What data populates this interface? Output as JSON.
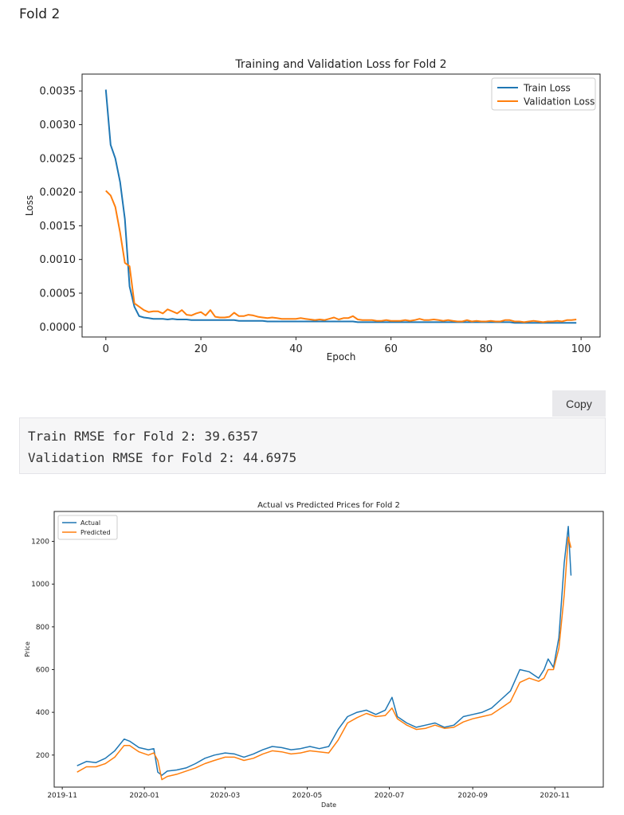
{
  "heading": "Fold 2",
  "copy_label": "Copy",
  "output_lines": [
    "Train RMSE for Fold 2: 39.6357",
    "Validation RMSE for Fold 2: 44.6975"
  ],
  "colors": {
    "blue": "#1f77b4",
    "orange": "#ff7f0e"
  },
  "chart_data": [
    {
      "type": "line",
      "title": "Training and Validation Loss for Fold 2",
      "xlabel": "Epoch",
      "ylabel": "Loss",
      "xlim": [
        -5,
        104
      ],
      "ylim": [
        -0.00015,
        0.00375
      ],
      "x_ticks": [
        0,
        20,
        40,
        60,
        80,
        100
      ],
      "y_ticks": [
        0.0,
        0.0005,
        0.001,
        0.0015,
        0.002,
        0.0025,
        0.003,
        0.0035
      ],
      "y_tick_labels": [
        "0.0000",
        "0.0005",
        "0.0010",
        "0.0015",
        "0.0020",
        "0.0025",
        "0.0030",
        "0.0035"
      ],
      "grid": false,
      "legend": "top-right",
      "series": [
        {
          "name": "Train Loss",
          "color": "#1f77b4",
          "values": [
            0.00352,
            0.0027,
            0.0025,
            0.00215,
            0.0016,
            0.0006,
            0.0003,
            0.00016,
            0.00014,
            0.00013,
            0.00012,
            0.00012,
            0.00012,
            0.00011,
            0.00012,
            0.00011,
            0.00011,
            0.00011,
            0.0001,
            0.0001,
            0.0001,
            0.0001,
            0.0001,
            0.0001,
            0.0001,
            0.0001,
            0.0001,
            0.0001,
            9e-05,
            9e-05,
            9e-05,
            9e-05,
            9e-05,
            9e-05,
            8e-05,
            8e-05,
            8e-05,
            8e-05,
            8e-05,
            8e-05,
            8e-05,
            8e-05,
            8e-05,
            8e-05,
            8e-05,
            8e-05,
            8e-05,
            8e-05,
            8e-05,
            8e-05,
            8e-05,
            8e-05,
            8e-05,
            7e-05,
            7e-05,
            7e-05,
            7e-05,
            7e-05,
            7e-05,
            7e-05,
            7e-05,
            7e-05,
            7e-05,
            7e-05,
            7e-05,
            7e-05,
            7e-05,
            7e-05,
            7e-05,
            7e-05,
            7e-05,
            7e-05,
            7e-05,
            7e-05,
            7e-05,
            7e-05,
            7e-05,
            7e-05,
            7e-05,
            7e-05,
            7e-05,
            7e-05,
            7e-05,
            7e-05,
            7e-05,
            7e-05,
            6e-05,
            6e-05,
            6e-05,
            6e-05,
            6e-05,
            6e-05,
            6e-05,
            6e-05,
            6e-05,
            6e-05,
            6e-05,
            6e-05,
            6e-05,
            6e-05
          ]
        },
        {
          "name": "Validation Loss",
          "color": "#ff7f0e",
          "values": [
            0.00202,
            0.00195,
            0.00178,
            0.0014,
            0.00095,
            0.0009,
            0.00035,
            0.0003,
            0.00025,
            0.00022,
            0.00023,
            0.00023,
            0.0002,
            0.00026,
            0.00023,
            0.0002,
            0.00025,
            0.00018,
            0.00017,
            0.0002,
            0.00022,
            0.00017,
            0.00025,
            0.00015,
            0.00014,
            0.00014,
            0.00015,
            0.00021,
            0.00016,
            0.00016,
            0.00018,
            0.00017,
            0.00015,
            0.00014,
            0.00013,
            0.00014,
            0.00013,
            0.00012,
            0.00012,
            0.00012,
            0.00012,
            0.00013,
            0.00012,
            0.00011,
            0.0001,
            0.00011,
            0.0001,
            0.00012,
            0.00014,
            0.00011,
            0.00013,
            0.00013,
            0.00016,
            0.00011,
            0.0001,
            0.0001,
            0.0001,
            9e-05,
            9e-05,
            0.0001,
            9e-05,
            9e-05,
            9e-05,
            0.0001,
            9e-05,
            0.0001,
            0.00012,
            0.0001,
            0.0001,
            0.00011,
            0.0001,
            9e-05,
            0.0001,
            9e-05,
            8e-05,
            8e-05,
            0.0001,
            8e-05,
            9e-05,
            8e-05,
            8e-05,
            9e-05,
            8e-05,
            8e-05,
            0.0001,
            0.0001,
            8e-05,
            8e-05,
            7e-05,
            8e-05,
            9e-05,
            8e-05,
            7e-05,
            8e-05,
            8e-05,
            9e-05,
            8e-05,
            0.0001,
            0.0001,
            0.00011
          ]
        }
      ]
    },
    {
      "type": "line",
      "title": "Actual vs Predicted Prices for Fold 2",
      "xlabel": "Date",
      "ylabel": "Price",
      "xlim": [
        "2019-10-26",
        "2020-12-07"
      ],
      "ylim": [
        50,
        1340
      ],
      "x_tick_labels": [
        "2019-11",
        "2020-01",
        "2020-03",
        "2020-05",
        "2020-07",
        "2020-09",
        "2020-11"
      ],
      "y_ticks": [
        200,
        400,
        600,
        800,
        1000,
        1200
      ],
      "grid": false,
      "legend": "top-left",
      "x": [
        "2019-11-12",
        "2019-11-19",
        "2019-11-26",
        "2019-12-03",
        "2019-12-10",
        "2019-12-17",
        "2019-12-21",
        "2019-12-28",
        "2020-01-04",
        "2020-01-08",
        "2020-01-11",
        "2020-01-14",
        "2020-01-18",
        "2020-01-25",
        "2020-02-01",
        "2020-02-08",
        "2020-02-15",
        "2020-02-22",
        "2020-03-01",
        "2020-03-08",
        "2020-03-15",
        "2020-03-22",
        "2020-03-29",
        "2020-04-05",
        "2020-04-12",
        "2020-04-19",
        "2020-04-26",
        "2020-05-03",
        "2020-05-10",
        "2020-05-17",
        "2020-05-24",
        "2020-05-31",
        "2020-06-07",
        "2020-06-14",
        "2020-06-21",
        "2020-06-28",
        "2020-07-03",
        "2020-07-07",
        "2020-07-14",
        "2020-07-21",
        "2020-07-28",
        "2020-08-04",
        "2020-08-11",
        "2020-08-18",
        "2020-08-25",
        "2020-09-01",
        "2020-09-08",
        "2020-09-15",
        "2020-09-22",
        "2020-09-29",
        "2020-10-06",
        "2020-10-13",
        "2020-10-20",
        "2020-10-24",
        "2020-10-27",
        "2020-10-31",
        "2020-11-04",
        "2020-11-08",
        "2020-11-11",
        "2020-11-13"
      ],
      "series": [
        {
          "name": "Actual",
          "color": "#1f77b4",
          "values": [
            150,
            170,
            165,
            185,
            220,
            275,
            265,
            235,
            225,
            230,
            120,
            105,
            125,
            130,
            140,
            160,
            185,
            200,
            210,
            205,
            190,
            205,
            225,
            240,
            235,
            225,
            230,
            240,
            230,
            240,
            320,
            380,
            400,
            410,
            390,
            410,
            470,
            380,
            350,
            330,
            340,
            350,
            330,
            340,
            380,
            390,
            400,
            420,
            460,
            500,
            600,
            590,
            560,
            600,
            650,
            610,
            750,
            1100,
            1270,
            1040
          ]
        },
        {
          "name": "Predicted",
          "color": "#ff7f0e",
          "values": [
            120,
            145,
            145,
            160,
            190,
            245,
            245,
            215,
            200,
            210,
            175,
            85,
            100,
            110,
            125,
            140,
            160,
            175,
            190,
            190,
            175,
            185,
            205,
            220,
            215,
            205,
            210,
            220,
            215,
            210,
            270,
            350,
            375,
            395,
            380,
            385,
            420,
            370,
            340,
            320,
            325,
            340,
            325,
            330,
            355,
            370,
            380,
            390,
            420,
            450,
            540,
            560,
            545,
            560,
            600,
            600,
            700,
            950,
            1220,
            1170
          ]
        }
      ]
    }
  ]
}
